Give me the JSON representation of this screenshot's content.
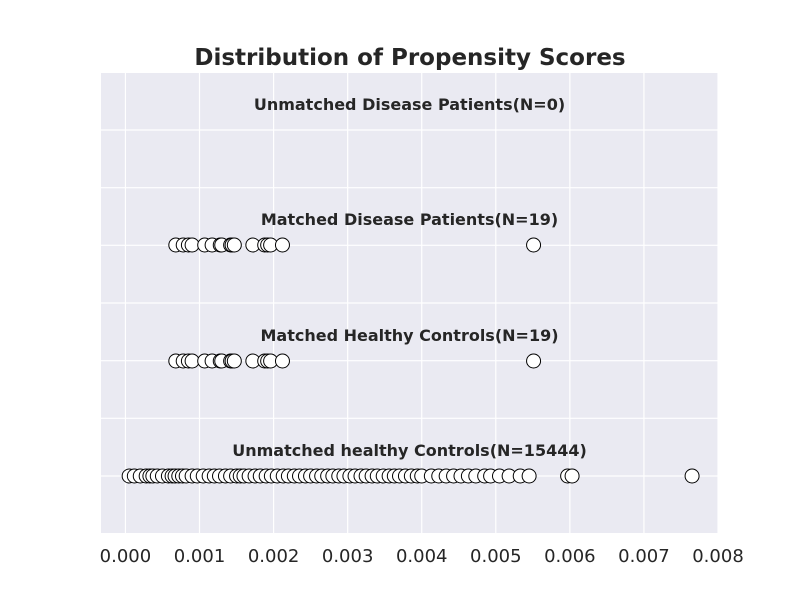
{
  "chart_data": {
    "type": "scatter",
    "title": "Distribution of Propensity Scores",
    "xlabel": "",
    "ylabel": "",
    "xlim": [
      -0.00033,
      0.008
    ],
    "x_ticks": [
      "0.000",
      "0.001",
      "0.002",
      "0.003",
      "0.004",
      "0.005",
      "0.006",
      "0.007",
      "0.008"
    ],
    "x_tick_values": [
      0,
      0.001,
      0.002,
      0.003,
      0.004,
      0.005,
      0.006,
      0.007,
      0.008
    ],
    "grid": true,
    "background_color": "#EAEAF2",
    "grid_color": "#FFFFFF",
    "marker_face_color": "#FFFFFF",
    "marker_edge_color": "#000000",
    "groups": [
      {
        "label": "Unmatched Disease Patients(N=0)",
        "x": []
      },
      {
        "label": "Matched Disease Patients(N=19)",
        "x": [
          0.00068,
          0.00078,
          0.00085,
          0.0009,
          0.00107,
          0.00117,
          0.00128,
          0.0013,
          0.00142,
          0.00144,
          0.00147,
          0.00172,
          0.00188,
          0.00192,
          0.00196,
          0.00212,
          0.00551
        ]
      },
      {
        "label": "Matched Healthy Controls(N=19)",
        "x": [
          0.00068,
          0.00078,
          0.00085,
          0.0009,
          0.00107,
          0.00117,
          0.00128,
          0.0013,
          0.00142,
          0.00144,
          0.00147,
          0.00172,
          0.00188,
          0.00192,
          0.00196,
          0.00212,
          0.00551
        ]
      },
      {
        "label": "Unmatched healthy Controls(N=15444)",
        "x": [
          5e-05,
          0.00012,
          0.0002,
          0.00028,
          0.00033,
          0.00037,
          0.00043,
          0.0005,
          0.00058,
          0.00063,
          0.00067,
          0.00072,
          0.00077,
          0.00082,
          0.0009,
          0.00097,
          0.00105,
          0.00113,
          0.0012,
          0.00127,
          0.00135,
          0.00142,
          0.0015,
          0.00155,
          0.0016,
          0.00167,
          0.00175,
          0.00182,
          0.0019,
          0.00197,
          0.00205,
          0.00213,
          0.0022,
          0.00228,
          0.00235,
          0.00243,
          0.0025,
          0.00258,
          0.00265,
          0.00273,
          0.0028,
          0.00288,
          0.00295,
          0.00303,
          0.0031,
          0.00318,
          0.00325,
          0.00333,
          0.0034,
          0.00348,
          0.00356,
          0.00363,
          0.0037,
          0.00378,
          0.00386,
          0.00394,
          0.004,
          0.00413,
          0.00423,
          0.00433,
          0.00443,
          0.00453,
          0.00463,
          0.00473,
          0.00485,
          0.00493,
          0.00505,
          0.00518,
          0.00533,
          0.00545,
          0.00597,
          0.00603,
          0.00765
        ]
      }
    ]
  }
}
